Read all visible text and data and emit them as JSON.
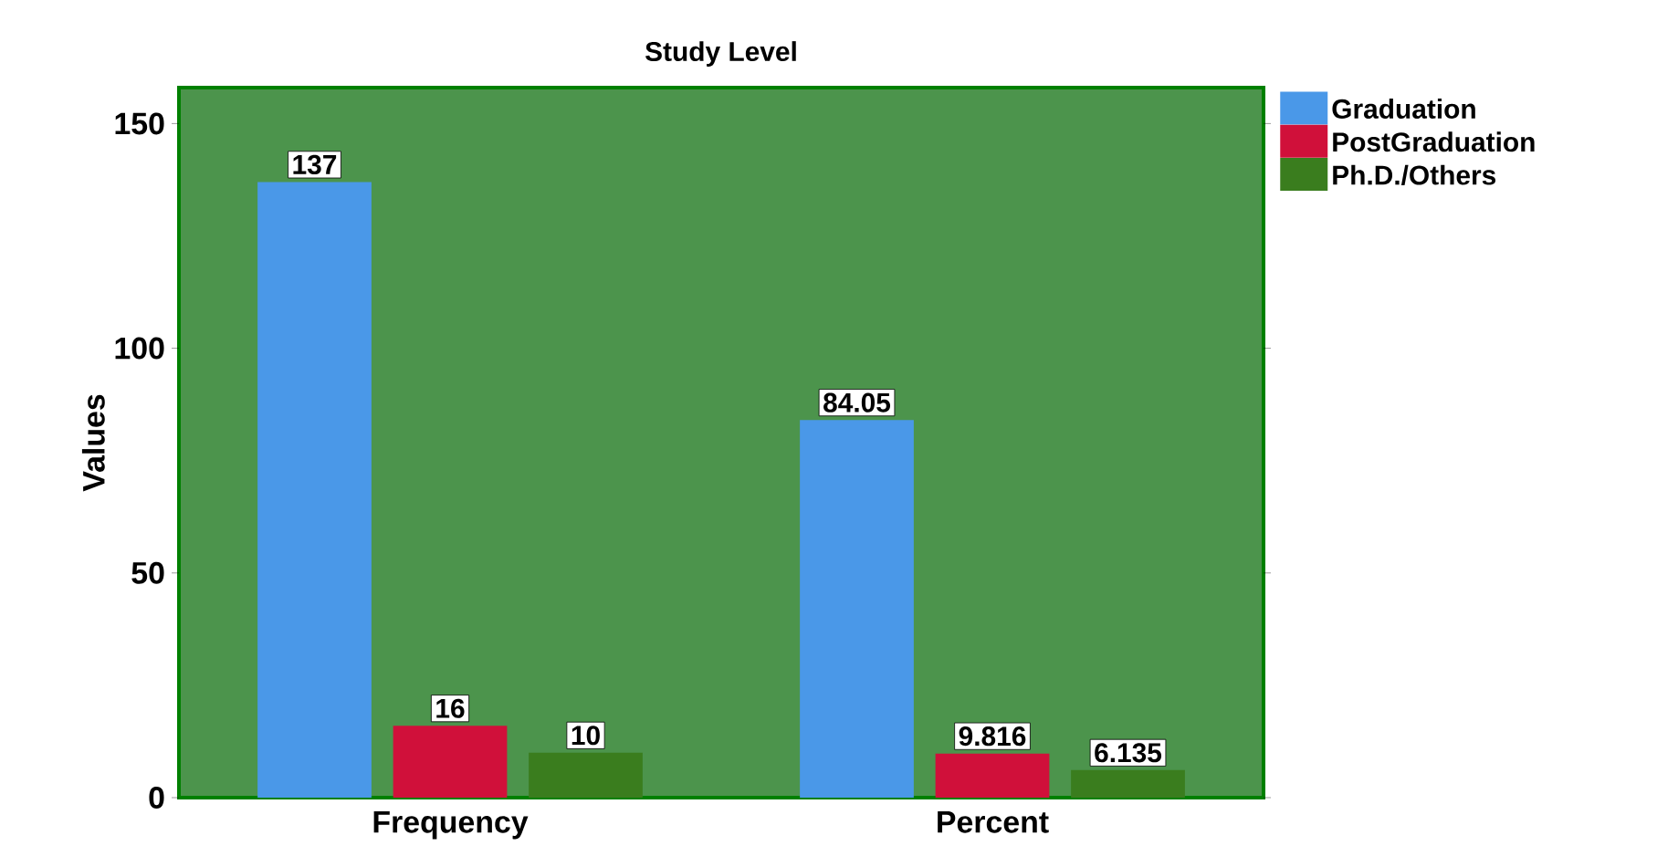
{
  "chart_data": {
    "type": "bar",
    "title": "Study Level",
    "ylabel": "Values",
    "categories": [
      "Frequency",
      "Percent"
    ],
    "series": [
      {
        "name": "Graduation",
        "color": "#4a98e8",
        "values": [
          137,
          84.05
        ]
      },
      {
        "name": "PostGraduation",
        "color": "#d0103a",
        "values": [
          16,
          9.816
        ]
      },
      {
        "name": "Ph.D./Others",
        "color": "#3a7d1e",
        "values": [
          10,
          6.135
        ]
      }
    ],
    "ylim": [
      0,
      158
    ],
    "yticks": [
      0,
      50,
      100,
      150
    ],
    "grid": false,
    "legend": "top right",
    "data_labels": true
  }
}
